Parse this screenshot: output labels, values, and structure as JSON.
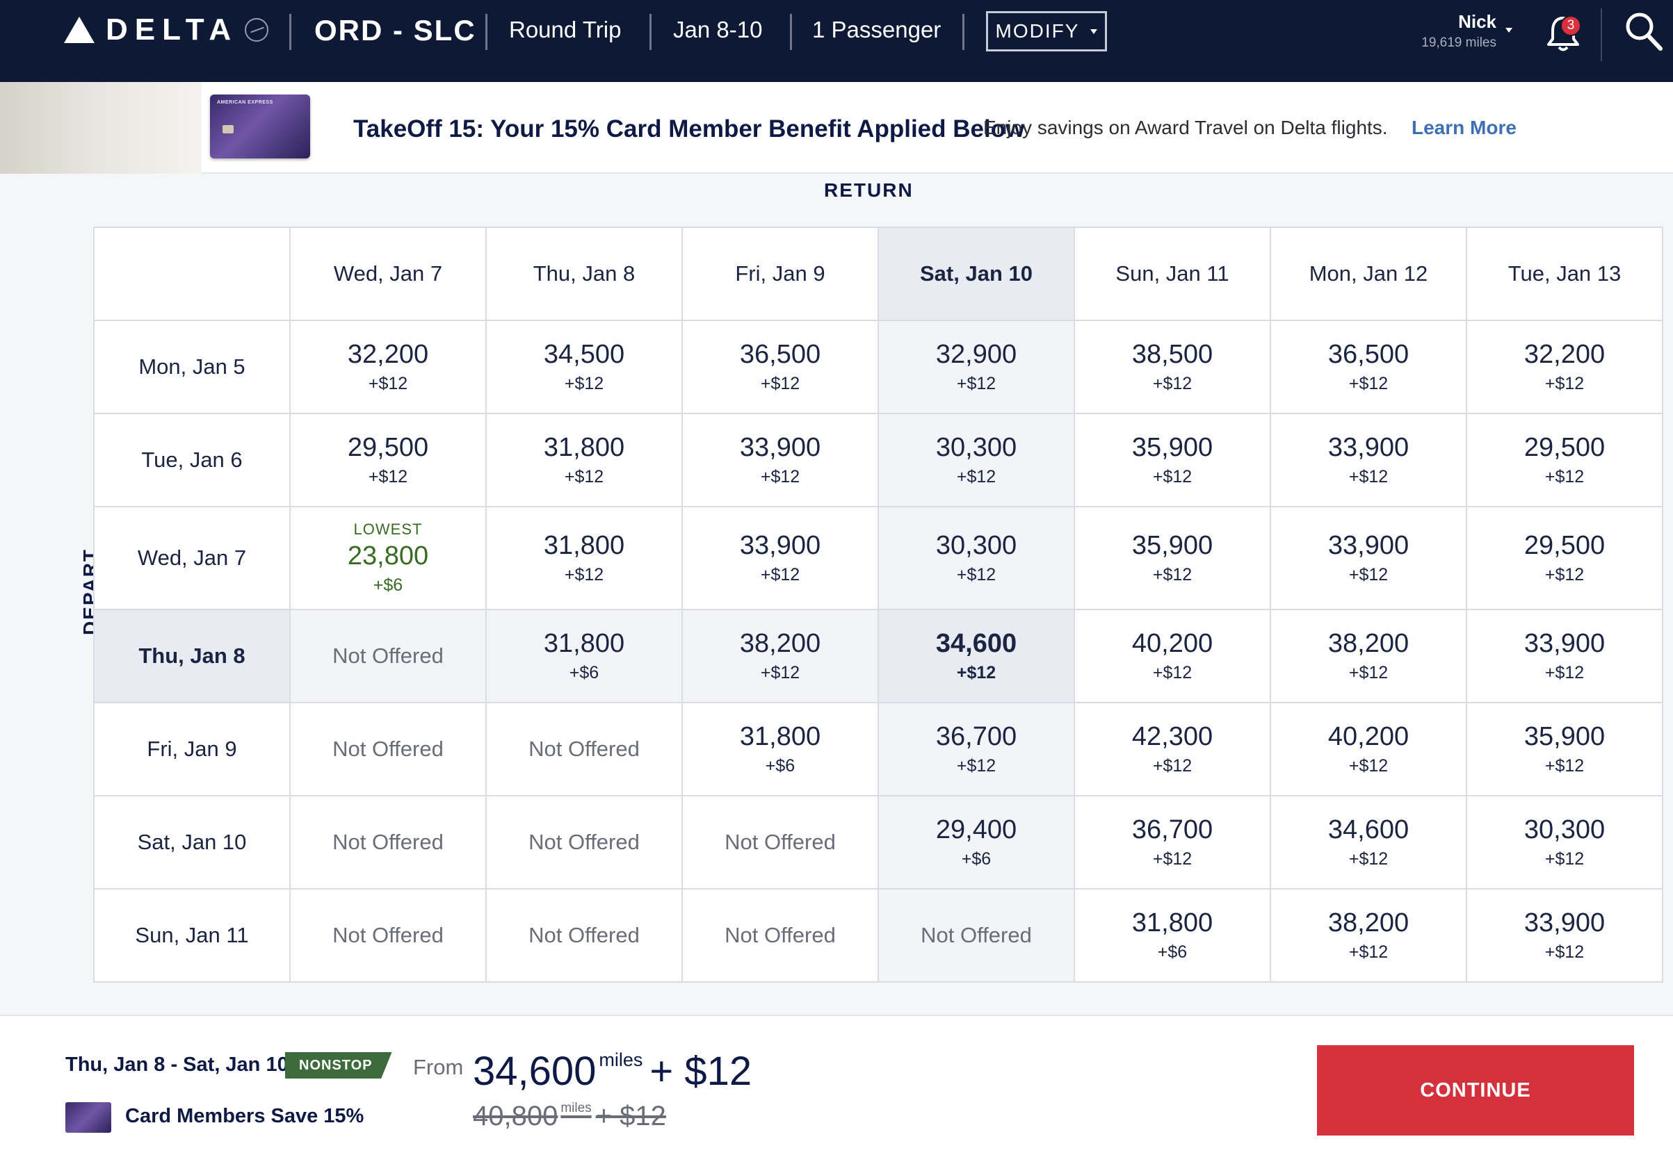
{
  "header": {
    "logo_text": "DELTA",
    "route": "ORD - SLC",
    "trip_type": "Round Trip",
    "dates": "Jan 8-10",
    "passengers": "1 Passenger",
    "modify_label": "MODIFY",
    "user_name": "Nick",
    "user_miles": "19,619 miles",
    "notification_count": "3",
    "bg_color": "#0e1a35"
  },
  "promo": {
    "card_brand": "AMERICAN EXPRESS",
    "title": "TakeOff 15: Your 15% Card Member Benefit Applied Below",
    "text": "Enjoy savings on Award Travel on Delta flights.",
    "link": "Learn More"
  },
  "grid": {
    "return_label": "RETURN",
    "depart_label": "DEPART",
    "return_dates": [
      "Wed, Jan 7",
      "Thu, Jan 8",
      "Fri, Jan 9",
      "Sat, Jan 10",
      "Sun, Jan 11",
      "Mon, Jan 12",
      "Tue, Jan 13"
    ],
    "rows": [
      {
        "depart": "Mon, Jan 5",
        "cells": [
          {
            "miles": "32,200",
            "fee": "+$12"
          },
          {
            "miles": "34,500",
            "fee": "+$12"
          },
          {
            "miles": "36,500",
            "fee": "+$12"
          },
          {
            "miles": "32,900",
            "fee": "+$12"
          },
          {
            "miles": "38,500",
            "fee": "+$12"
          },
          {
            "miles": "36,500",
            "fee": "+$12"
          },
          {
            "miles": "32,200",
            "fee": "+$12"
          }
        ]
      },
      {
        "depart": "Tue, Jan 6",
        "cells": [
          {
            "miles": "29,500",
            "fee": "+$12"
          },
          {
            "miles": "31,800",
            "fee": "+$12"
          },
          {
            "miles": "33,900",
            "fee": "+$12"
          },
          {
            "miles": "30,300",
            "fee": "+$12"
          },
          {
            "miles": "35,900",
            "fee": "+$12"
          },
          {
            "miles": "33,900",
            "fee": "+$12"
          },
          {
            "miles": "29,500",
            "fee": "+$12"
          }
        ]
      },
      {
        "depart": "Wed, Jan 7",
        "cells": [
          {
            "tag": "LOWEST",
            "miles": "23,800",
            "fee": "+$6"
          },
          {
            "miles": "31,800",
            "fee": "+$12"
          },
          {
            "miles": "33,900",
            "fee": "+$12"
          },
          {
            "miles": "30,300",
            "fee": "+$12"
          },
          {
            "miles": "35,900",
            "fee": "+$12"
          },
          {
            "miles": "33,900",
            "fee": "+$12"
          },
          {
            "miles": "29,500",
            "fee": "+$12"
          }
        ]
      },
      {
        "depart": "Thu, Jan 8",
        "cells": [
          {
            "na": "Not Offered"
          },
          {
            "miles": "31,800",
            "fee": "+$6"
          },
          {
            "miles": "38,200",
            "fee": "+$12"
          },
          {
            "miles": "34,600",
            "fee": "+$12"
          },
          {
            "miles": "40,200",
            "fee": "+$12"
          },
          {
            "miles": "38,200",
            "fee": "+$12"
          },
          {
            "miles": "33,900",
            "fee": "+$12"
          }
        ]
      },
      {
        "depart": "Fri, Jan 9",
        "cells": [
          {
            "na": "Not Offered"
          },
          {
            "na": "Not Offered"
          },
          {
            "miles": "31,800",
            "fee": "+$6"
          },
          {
            "miles": "36,700",
            "fee": "+$12"
          },
          {
            "miles": "42,300",
            "fee": "+$12"
          },
          {
            "miles": "40,200",
            "fee": "+$12"
          },
          {
            "miles": "35,900",
            "fee": "+$12"
          }
        ]
      },
      {
        "depart": "Sat, Jan 10",
        "cells": [
          {
            "na": "Not Offered"
          },
          {
            "na": "Not Offered"
          },
          {
            "na": "Not Offered"
          },
          {
            "miles": "29,400",
            "fee": "+$6"
          },
          {
            "miles": "36,700",
            "fee": "+$12"
          },
          {
            "miles": "34,600",
            "fee": "+$12"
          },
          {
            "miles": "30,300",
            "fee": "+$12"
          }
        ]
      },
      {
        "depart": "Sun, Jan 11",
        "cells": [
          {
            "na": "Not Offered"
          },
          {
            "na": "Not Offered"
          },
          {
            "na": "Not Offered"
          },
          {
            "na": "Not Offered"
          },
          {
            "miles": "31,800",
            "fee": "+$6"
          },
          {
            "miles": "38,200",
            "fee": "+$12"
          },
          {
            "miles": "33,900",
            "fee": "+$12"
          }
        ]
      }
    ]
  },
  "footer": {
    "dates": "Thu, Jan 8 - Sat, Jan 10",
    "badge": "NONSTOP",
    "card_save": "Card Members Save 15%",
    "from_label": "From",
    "miles": "34,600",
    "miles_unit": "miles",
    "fee": "+ $12",
    "old_miles": "40,800",
    "old_fee": "+ $12",
    "continue_label": "CONTINUE",
    "continue_color": "#d4313c"
  }
}
